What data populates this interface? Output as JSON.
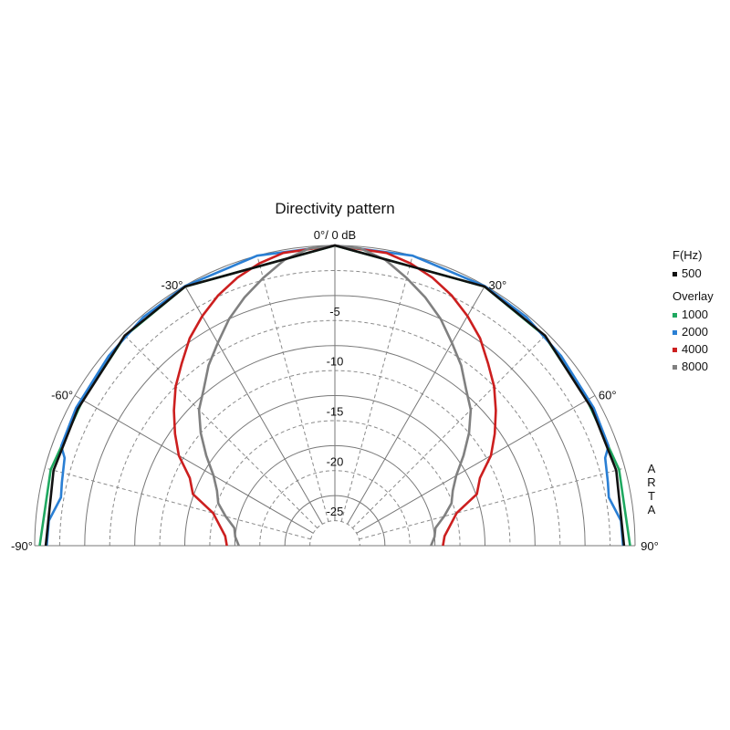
{
  "chart_data": {
    "type": "polar",
    "title": "Directivity pattern",
    "top_label": "0°/ 0 dB",
    "angle_labels": [
      {
        "angle": -90,
        "text": "-90°"
      },
      {
        "angle": -60,
        "text": "-60°"
      },
      {
        "angle": -30,
        "text": "-30°"
      },
      {
        "angle": 30,
        "text": "30°"
      },
      {
        "angle": 60,
        "text": "60°"
      },
      {
        "angle": 90,
        "text": "90°"
      }
    ],
    "db_labels": [
      {
        "db": -5,
        "text": "-5"
      },
      {
        "db": -10,
        "text": "-10"
      },
      {
        "db": -15,
        "text": "-15"
      },
      {
        "db": -20,
        "text": "-20"
      },
      {
        "db": -25,
        "text": "-25"
      }
    ],
    "db_range": [
      -30,
      0
    ],
    "angle_range": [
      -90,
      90
    ],
    "side_text": "ARTA",
    "legend": {
      "header": "F(Hz)",
      "overlay_header": "Overlay",
      "primary": {
        "name": "500",
        "color": "#111111"
      },
      "overlays": [
        {
          "name": "1000",
          "color": "#1fa860"
        },
        {
          "name": "2000",
          "color": "#2a7fd4"
        },
        {
          "name": "4000",
          "color": "#cc1f1f"
        },
        {
          "name": "8000",
          "color": "#808080"
        }
      ]
    },
    "series": [
      {
        "name": "500",
        "color": "#111111",
        "points": [
          [
            -90,
            -1.1
          ],
          [
            -75,
            -0.9
          ],
          [
            -62,
            -0.9
          ],
          [
            -45,
            -0.3
          ],
          [
            -30,
            -0.1
          ],
          [
            0,
            0
          ],
          [
            30,
            -0.1
          ],
          [
            45,
            -0.3
          ],
          [
            62,
            -0.9
          ],
          [
            75,
            -0.9
          ],
          [
            90,
            -1.1
          ]
        ]
      },
      {
        "name": "1000",
        "color": "#1fa860",
        "points": [
          [
            -90,
            -0.5
          ],
          [
            -75,
            -0.6
          ],
          [
            -60,
            -0.9
          ],
          [
            -45,
            -0.35
          ],
          [
            -30,
            -0.1
          ],
          [
            0,
            0
          ],
          [
            30,
            -0.1
          ],
          [
            45,
            -0.35
          ],
          [
            60,
            -0.9
          ],
          [
            75,
            -0.6
          ],
          [
            90,
            -0.5
          ]
        ]
      },
      {
        "name": "2000",
        "color": "#2a7fd4",
        "points": [
          [
            -90,
            -1.2
          ],
          [
            -85,
            -1.3
          ],
          [
            -80,
            -2.2
          ],
          [
            -77,
            -2.0
          ],
          [
            -72,
            -1.6
          ],
          [
            -70,
            -0.9
          ],
          [
            -62,
            -0.7
          ],
          [
            -50,
            -0.5
          ],
          [
            -40,
            -0.2
          ],
          [
            -30,
            -0.05
          ],
          [
            -15,
            0
          ],
          [
            0,
            0
          ],
          [
            15,
            0
          ],
          [
            30,
            -0.05
          ],
          [
            40,
            -0.2
          ],
          [
            50,
            -0.5
          ],
          [
            62,
            -0.7
          ],
          [
            70,
            -0.9
          ],
          [
            72,
            -1.6
          ],
          [
            77,
            -2.0
          ],
          [
            80,
            -2.2
          ],
          [
            85,
            -1.3
          ],
          [
            90,
            -1.2
          ]
        ]
      },
      {
        "name": "4000",
        "color": "#cc1f1f",
        "points": [
          [
            -90,
            -19.2
          ],
          [
            -85,
            -19.0
          ],
          [
            -80,
            -18.3
          ],
          [
            -75,
            -17.4
          ],
          [
            -70,
            -14.9
          ],
          [
            -65,
            -14.0
          ],
          [
            -60,
            -12.0
          ],
          [
            -55,
            -10.5
          ],
          [
            -50,
            -9.0
          ],
          [
            -45,
            -7.5
          ],
          [
            -40,
            -6.2
          ],
          [
            -35,
            -4.7
          ],
          [
            -30,
            -3.5
          ],
          [
            -25,
            -2.4
          ],
          [
            -20,
            -1.5
          ],
          [
            -15,
            -0.8
          ],
          [
            -10,
            -0.3
          ],
          [
            0,
            0
          ],
          [
            10,
            -0.3
          ],
          [
            15,
            -0.8
          ],
          [
            20,
            -1.5
          ],
          [
            25,
            -2.4
          ],
          [
            30,
            -3.5
          ],
          [
            35,
            -4.7
          ],
          [
            40,
            -6.2
          ],
          [
            45,
            -7.5
          ],
          [
            50,
            -9.0
          ],
          [
            55,
            -10.5
          ],
          [
            60,
            -12.0
          ],
          [
            65,
            -14.0
          ],
          [
            70,
            -14.9
          ],
          [
            75,
            -17.4
          ],
          [
            80,
            -18.3
          ],
          [
            85,
            -19.0
          ],
          [
            90,
            -19.2
          ]
        ]
      },
      {
        "name": "8000",
        "color": "#808080",
        "points": [
          [
            -90,
            -20.4
          ],
          [
            -85,
            -20.0
          ],
          [
            -80,
            -19.8
          ],
          [
            -75,
            -18.7
          ],
          [
            -70,
            -17.6
          ],
          [
            -65,
            -17.0
          ],
          [
            -60,
            -16.0
          ],
          [
            -55,
            -14.3
          ],
          [
            -50,
            -12.5
          ],
          [
            -45,
            -10.8
          ],
          [
            -40,
            -9.6
          ],
          [
            -35,
            -8.0
          ],
          [
            -30,
            -6.6
          ],
          [
            -25,
            -5.0
          ],
          [
            -20,
            -3.6
          ],
          [
            -15,
            -2.3
          ],
          [
            -10,
            -1.0
          ],
          [
            -5,
            -0.2
          ],
          [
            0,
            0
          ],
          [
            5,
            -0.2
          ],
          [
            10,
            -1.0
          ],
          [
            15,
            -2.3
          ],
          [
            20,
            -3.6
          ],
          [
            25,
            -5.0
          ],
          [
            30,
            -6.6
          ],
          [
            35,
            -8.0
          ],
          [
            40,
            -9.6
          ],
          [
            45,
            -10.8
          ],
          [
            50,
            -12.5
          ],
          [
            55,
            -14.3
          ],
          [
            60,
            -16.0
          ],
          [
            65,
            -17.0
          ],
          [
            70,
            -17.6
          ],
          [
            75,
            -18.7
          ],
          [
            80,
            -19.8
          ],
          [
            85,
            -20.0
          ],
          [
            90,
            -20.4
          ]
        ]
      }
    ]
  }
}
